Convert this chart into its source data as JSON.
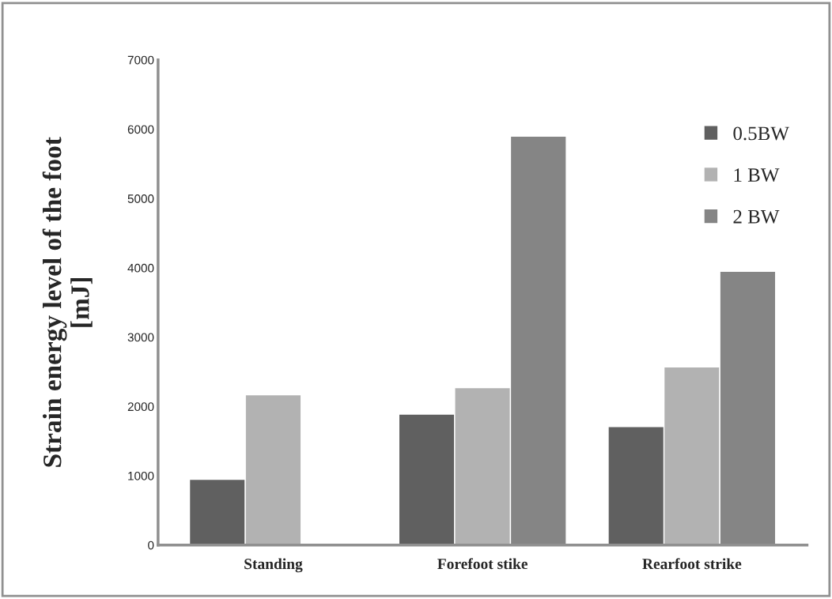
{
  "chart_data": {
    "type": "bar",
    "ylabel": "Strain energy level of the foot\n[mJ]",
    "categories": [
      "Standing",
      "Forefoot stike",
      "Rearfoot strike"
    ],
    "series": [
      {
        "name": "0.5BW",
        "color": "#606060",
        "values": [
          950,
          1890,
          1710
        ]
      },
      {
        "name": "1 BW",
        "color": "#b2b2b2",
        "values": [
          2170,
          2270,
          2570
        ]
      },
      {
        "name": "2 BW",
        "color": "#858585",
        "values": [
          null,
          5900,
          3950
        ]
      }
    ],
    "ylim": [
      0,
      7000
    ],
    "yticks": [
      0,
      1000,
      2000,
      3000,
      4000,
      5000,
      6000,
      7000
    ],
    "grid": false,
    "legend": "top right"
  }
}
